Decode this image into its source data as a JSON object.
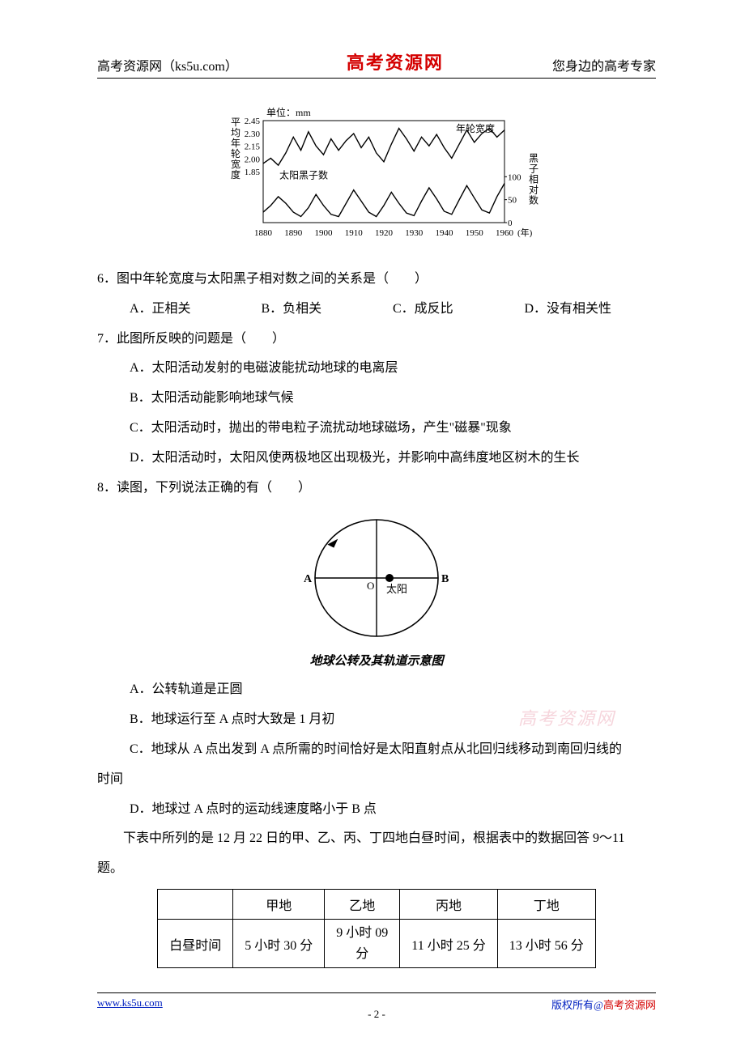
{
  "header": {
    "left": "高考资源网（ks5u.com）",
    "center": "高考资源网",
    "right": "您身边的高考专家"
  },
  "watermark": "高考资源网",
  "chart1": {
    "unit_label": "单位：mm",
    "y_left_label_chars": [
      "平",
      "均",
      "年",
      "轮",
      "宽",
      "度"
    ],
    "y_left_ticks": [
      "2.45",
      "2.30",
      "2.15",
      "2.00",
      "1.85"
    ],
    "y_right_label_chars": [
      "黑",
      "子",
      "相",
      "对",
      "数"
    ],
    "y_right_ticks": [
      "100",
      "50",
      "0"
    ],
    "x_ticks": [
      "1880",
      "1890",
      "1900",
      "1910",
      "1920",
      "1930",
      "1940",
      "1950",
      "1960"
    ],
    "x_unit": "(年)",
    "series_upper_label": "年轮宽度",
    "series_lower_label": "太阳黑子数",
    "upper_series": [
      2.0,
      2.06,
      1.98,
      2.12,
      2.3,
      2.15,
      2.36,
      2.2,
      2.1,
      2.28,
      2.15,
      2.26,
      2.34,
      2.18,
      2.3,
      2.12,
      2.02,
      2.22,
      2.4,
      2.28,
      2.14,
      2.3,
      2.2,
      2.33,
      2.18,
      2.06,
      2.22,
      2.38,
      2.24,
      2.34,
      2.4,
      2.3,
      2.38
    ],
    "lower_series": [
      20,
      35,
      55,
      40,
      20,
      10,
      30,
      60,
      35,
      15,
      10,
      40,
      70,
      45,
      20,
      10,
      35,
      65,
      40,
      18,
      12,
      45,
      75,
      50,
      22,
      15,
      48,
      80,
      52,
      25,
      18,
      55,
      85
    ],
    "x_domain": [
      1880,
      1960
    ],
    "left_ylim": [
      1.85,
      2.45
    ],
    "right_ylim": [
      0,
      100
    ],
    "stroke": "#000000",
    "bg": "#ffffff"
  },
  "q6": {
    "stem": "6．图中年轮宽度与太阳黑子相对数之间的关系是（　　）",
    "A": "A．正相关",
    "B": "B．负相关",
    "C": "C．成反比",
    "D": "D．没有相关性"
  },
  "q7": {
    "stem": "7．此图所反映的问题是（　　）",
    "A": "A．太阳活动发射的电磁波能扰动地球的电离层",
    "B": "B．太阳活动能影响地球气候",
    "C": "C．太阳活动时，抛出的带电粒子流扰动地球磁场，产生\"磁暴\"现象",
    "D": "D．太阳活动时，太阳风使两极地区出现极光，并影响中高纬度地区树木的生长"
  },
  "q8": {
    "stem": "8．读图，下列说法正确的有（　　）",
    "diagram": {
      "labels": {
        "A": "A",
        "B": "B",
        "O": "O",
        "sun": "太阳"
      },
      "caption": "地球公转及其轨道示意图",
      "stroke": "#000000"
    },
    "A": "A．公转轨道是正圆",
    "B": "B．地球运行至 A 点时大致是 1 月初",
    "C": "C．地球从 A 点出发到 A 点所需的时间恰好是太阳直射点从北回归线移动到南回归线的",
    "C_cont": "时间",
    "D": "D．地球过 A 点时的运动线速度略小于 B 点"
  },
  "table_intro": "　　下表中所列的是 12 月 22 日的甲、乙、丙、丁四地白昼时间，根据表中的数据回答 9～11",
  "table_intro_cont": "题。",
  "table": {
    "cols": [
      "",
      "甲地",
      "乙地",
      "丙地",
      "丁地"
    ],
    "row_label": "白昼时间",
    "cells": [
      "5 小时 30 分",
      "9 小时 09 分",
      "11 小时 25 分",
      "13 小时 56 分"
    ],
    "stack_col_index": 2
  },
  "footer": {
    "left": "www.ks5u.com",
    "center": "- 2 -",
    "right_plain": "版权所有@",
    "right_red": "高考资源网"
  }
}
